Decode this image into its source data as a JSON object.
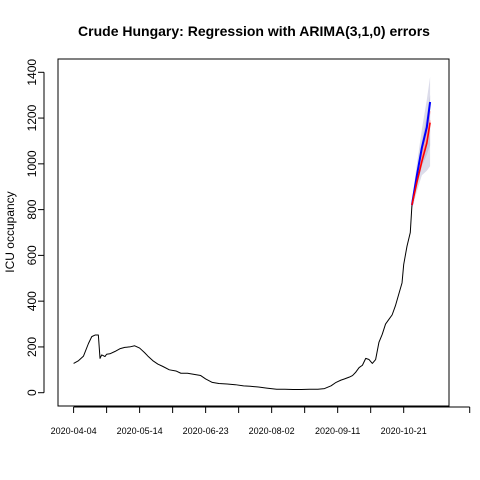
{
  "chart_data": {
    "type": "line",
    "title": "Crude Hungary: Regression with ARIMA(3,1,0) errors",
    "ylabel": "ICU occupancy",
    "xlabel": "",
    "ylim": [
      0,
      1400
    ],
    "yticks": [
      0,
      200,
      400,
      600,
      800,
      1000,
      1200,
      1400
    ],
    "xlim": [
      "2020-04-04",
      "2020-11-08"
    ],
    "xtick_dates": [
      "2020-04-04",
      "2020-05-14",
      "2020-06-23",
      "2020-08-02",
      "2020-09-11",
      "2020-10-21"
    ],
    "xtick_labels": [
      "2020-04-04",
      "2020-05-14",
      "2020-06-23",
      "2020-08-02",
      "2020-09-11",
      "2020-10-21"
    ],
    "grid": false,
    "colors": {
      "observed": "#000000",
      "forecast_red": "#ff0000",
      "forecast_blue": "#0000ff",
      "forecast_pink": "#ff9999",
      "band_outer": "#dcdcea",
      "band_inner": "#c4c4dc"
    },
    "series": [
      {
        "x": [
          "2020-04-04",
          "2020-04-07",
          "2020-04-10",
          "2020-04-13",
          "2020-04-15",
          "2020-04-17",
          "2020-04-19",
          "2020-04-20",
          "2020-04-21",
          "2020-04-22",
          "2020-04-23",
          "2020-04-24",
          "2020-04-26",
          "2020-04-29",
          "2020-05-02",
          "2020-05-05",
          "2020-05-08",
          "2020-05-11",
          "2020-05-14",
          "2020-05-17",
          "2020-05-19",
          "2020-05-22",
          "2020-05-25",
          "2020-05-28",
          "2020-06-01",
          "2020-06-05",
          "2020-06-08",
          "2020-06-12",
          "2020-06-16",
          "2020-06-20",
          "2020-06-23",
          "2020-06-27",
          "2020-07-01",
          "2020-07-06",
          "2020-07-11",
          "2020-07-16",
          "2020-07-20",
          "2020-07-25",
          "2020-07-30",
          "2020-08-05",
          "2020-08-10",
          "2020-08-15",
          "2020-08-20",
          "2020-08-25",
          "2020-08-30",
          "2020-09-03",
          "2020-09-07",
          "2020-09-10",
          "2020-09-13",
          "2020-09-15",
          "2020-09-18",
          "2020-09-20",
          "2020-09-22",
          "2020-09-24",
          "2020-09-26",
          "2020-09-28",
          "2020-09-30",
          "2020-10-02",
          "2020-10-04",
          "2020-10-06",
          "2020-10-08",
          "2020-10-10",
          "2020-10-12",
          "2020-10-14",
          "2020-10-16",
          "2020-10-18",
          "2020-10-20",
          "2020-10-21",
          "2020-10-23",
          "2020-10-25",
          "2020-10-26"
        ],
        "values": [
          128,
          140,
          160,
          215,
          245,
          252,
          252,
          150,
          165,
          162,
          158,
          168,
          170,
          180,
          192,
          198,
          200,
          205,
          195,
          175,
          160,
          140,
          125,
          115,
          100,
          95,
          85,
          85,
          80,
          75,
          60,
          45,
          40,
          38,
          35,
          30,
          28,
          25,
          20,
          15,
          15,
          14,
          14,
          15,
          15,
          18,
          30,
          45,
          55,
          60,
          68,
          75,
          90,
          110,
          120,
          150,
          145,
          128,
          145,
          220,
          255,
          300,
          320,
          340,
          380,
          430,
          480,
          560,
          640,
          700,
          820
        ]
      },
      {
        "x": [
          "2020-10-26",
          "2020-10-29",
          "2020-11-01",
          "2020-11-04",
          "2020-11-06"
        ],
        "values": [
          820,
          920,
          1010,
          1090,
          1180
        ]
      },
      {
        "x": [
          "2020-10-26",
          "2020-10-29",
          "2020-11-01",
          "2020-11-04",
          "2020-11-06"
        ],
        "values": [
          820,
          950,
          1070,
          1160,
          1270
        ]
      },
      {
        "x": [
          "2020-10-26",
          "2020-10-29",
          "2020-11-01",
          "2020-11-04",
          "2020-11-06"
        ],
        "values": [
          820,
          940,
          1050,
          1140,
          1230
        ]
      },
      {
        "x": [
          "2020-10-26",
          "2020-10-29",
          "2020-11-01",
          "2020-11-04",
          "2020-11-06"
        ],
        "values": [
          820,
          930,
          1030,
          1110,
          1190
        ]
      }
    ],
    "bands": [
      {
        "x": [
          "2020-10-26",
          "2020-10-29",
          "2020-11-01",
          "2020-11-04",
          "2020-11-06"
        ],
        "lower": [
          800,
          880,
          950,
          970,
          990
        ],
        "upper": [
          840,
          1000,
          1150,
          1280,
          1380
        ]
      },
      {
        "x": [
          "2020-10-26",
          "2020-10-29",
          "2020-11-01",
          "2020-11-04",
          "2020-11-06"
        ],
        "lower": [
          810,
          900,
          990,
          1040,
          1080
        ],
        "upper": [
          830,
          970,
          1100,
          1210,
          1300
        ]
      }
    ]
  }
}
